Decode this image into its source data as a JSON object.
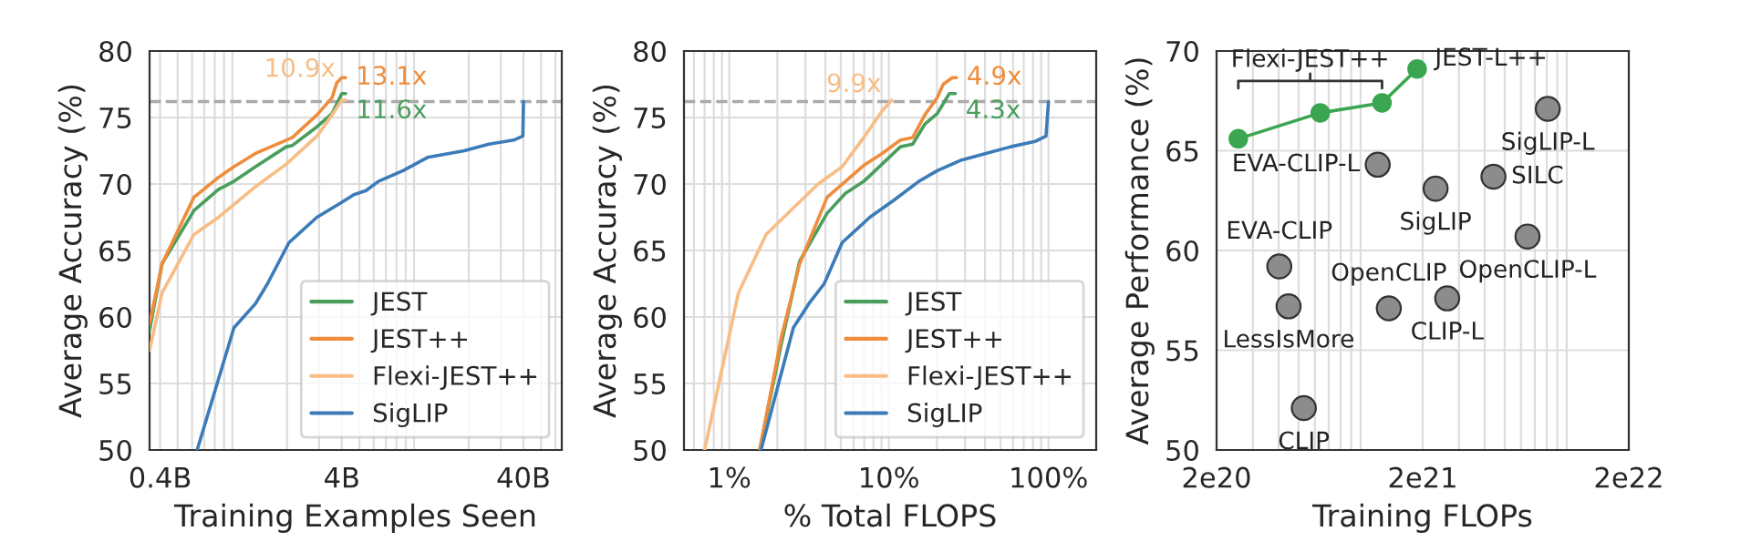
{
  "chart_data": [
    {
      "type": "line",
      "xlabel": "Training Examples Seen",
      "ylabel": "Average Accuracy (%)",
      "log": "x",
      "grid": true,
      "legend": "bottom right",
      "xlim": [
        0.35,
        65
      ],
      "ylim": [
        50,
        80
      ],
      "xticks": [
        {
          "value": 0.4,
          "label": "0.4B"
        },
        {
          "value": 0.5,
          "label": null
        },
        {
          "value": 0.6,
          "label": null
        },
        {
          "value": 0.7,
          "label": null
        },
        {
          "value": 0.8,
          "label": null
        },
        {
          "value": 0.9,
          "label": null
        },
        {
          "value": 1,
          "label": null
        },
        {
          "value": 2,
          "label": null
        },
        {
          "value": 3,
          "label": null
        },
        {
          "value": 4,
          "label": "4B"
        },
        {
          "value": 5,
          "label": null
        },
        {
          "value": 6,
          "label": null
        },
        {
          "value": 7,
          "label": null
        },
        {
          "value": 8,
          "label": null
        },
        {
          "value": 9,
          "label": null
        },
        {
          "value": 10,
          "label": null
        },
        {
          "value": 20,
          "label": null
        },
        {
          "value": 30,
          "label": null
        },
        {
          "value": 40,
          "label": "40B"
        },
        {
          "value": 50,
          "label": null
        },
        {
          "value": 60,
          "label": null
        }
      ],
      "yticks": [
        50,
        55,
        60,
        65,
        70,
        75,
        80
      ],
      "ref_lines": [
        {
          "axis": "y",
          "value": 76.2,
          "color": "#aaaaaa",
          "line_style": "dashed"
        }
      ],
      "annotations": [
        {
          "text": "13.1x",
          "x": 4.2,
          "y": 78
        },
        {
          "text": "11.6x",
          "x": 4.2,
          "y": 76.8
        },
        {
          "text": "10.9x",
          "x": 4.2,
          "y": 76.3
        }
      ],
      "series": [
        {
          "name": "JEST",
          "color": "#4a9e5c",
          "x": [
            0.35,
            0.41,
            0.614,
            0.839,
            1.02,
            1.34,
            1.98,
            2.14,
            2.92,
            3.54,
            4.0,
            4.2
          ],
          "values": [
            59,
            64,
            68,
            69.6,
            70.2,
            71.3,
            72.8,
            72.9,
            74.3,
            75.3,
            76.8,
            76.8
          ]
        },
        {
          "name": "JEST++",
          "color": "#ef8d3c",
          "x": [
            0.35,
            0.41,
            0.614,
            0.839,
            1.02,
            1.34,
            1.98,
            2.14,
            2.92,
            3.54,
            3.75,
            4.0,
            4.2
          ],
          "values": [
            59.5,
            64,
            69,
            70.5,
            71.3,
            72.3,
            73.3,
            73.5,
            75.2,
            76.5,
            77.6,
            78,
            78
          ]
        },
        {
          "name": "Flexi-JEST++",
          "color": "#f7bd85",
          "x": [
            0.35,
            0.41,
            0.614,
            0.839,
            1.34,
            1.98,
            2.92,
            3.54,
            4.0,
            4.2
          ],
          "values": [
            57.5,
            61.8,
            66.2,
            67.5,
            69.8,
            71.5,
            73.6,
            75.2,
            76.3,
            76.3
          ]
        },
        {
          "name": "SigLIP",
          "color": "#3b7bb8",
          "x": [
            0.64,
            1.02,
            1.34,
            1.56,
            2.05,
            2.92,
            3.97,
            4.66,
            5.44,
            6.36,
            8.69,
            11.86,
            18.9,
            25.8,
            35.3,
            39.7,
            40
          ],
          "values": [
            50,
            59.2,
            61,
            62.5,
            65.6,
            67.5,
            68.6,
            69.2,
            69.5,
            70.2,
            71,
            72,
            72.5,
            73,
            73.3,
            73.6,
            76.2
          ]
        }
      ]
    },
    {
      "type": "line",
      "xlabel": "% Total FLOPS",
      "ylabel": "Average Accuracy (%)",
      "log": "x",
      "grid": true,
      "legend": "bottom right",
      "xlim": [
        0.52,
        199
      ],
      "ylim": [
        50,
        80
      ],
      "xticks": [
        {
          "value": 0.6,
          "label": null
        },
        {
          "value": 0.7,
          "label": null
        },
        {
          "value": 0.8,
          "label": null
        },
        {
          "value": 0.9,
          "label": null
        },
        {
          "value": 1,
          "label": "1%"
        },
        {
          "value": 2,
          "label": null
        },
        {
          "value": 3,
          "label": null
        },
        {
          "value": 4,
          "label": null
        },
        {
          "value": 5,
          "label": null
        },
        {
          "value": 6,
          "label": null
        },
        {
          "value": 7,
          "label": null
        },
        {
          "value": 8,
          "label": null
        },
        {
          "value": 9,
          "label": null
        },
        {
          "value": 10,
          "label": "10%"
        },
        {
          "value": 20,
          "label": null
        },
        {
          "value": 30,
          "label": null
        },
        {
          "value": 40,
          "label": null
        },
        {
          "value": 50,
          "label": null
        },
        {
          "value": 60,
          "label": null
        },
        {
          "value": 70,
          "label": null
        },
        {
          "value": 80,
          "label": null
        },
        {
          "value": 90,
          "label": null
        },
        {
          "value": 100,
          "label": "100%"
        }
      ],
      "yticks": [
        50,
        55,
        60,
        65,
        70,
        75,
        80
      ],
      "ref_lines": [
        {
          "axis": "y",
          "value": 76.2,
          "color": "#aaaaaa",
          "line_style": "dashed"
        }
      ],
      "annotations": [
        {
          "text": "4.9x",
          "x": 26.5,
          "y": 78
        },
        {
          "text": "4.3x",
          "x": 26.1,
          "y": 76.8
        },
        {
          "text": "9.9x",
          "x": 10.4,
          "y": 76.3
        }
      ],
      "series": [
        {
          "name": "JEST",
          "color": "#4a9e5c",
          "x": [
            1.55,
            2.12,
            2.76,
            4.1,
            5.34,
            6.96,
            9.07,
            11.8,
            14.1,
            16.8,
            20.1,
            23.9,
            26.1
          ],
          "values": [
            50,
            58,
            64.2,
            67.8,
            69.3,
            70.2,
            71.5,
            72.8,
            73,
            74.5,
            75.3,
            76.8,
            76.8
          ]
        },
        {
          "name": "JEST++",
          "color": "#ef8d3c",
          "x": [
            1.55,
            2.12,
            2.76,
            4.1,
            5.34,
            6.96,
            9.07,
            11.8,
            14.1,
            16.8,
            20.1,
            21.9,
            25,
            26.5
          ],
          "values": [
            50,
            58.5,
            64,
            69,
            70.2,
            71.4,
            72.3,
            73.3,
            73.5,
            75.2,
            76.5,
            77.5,
            78,
            78
          ]
        },
        {
          "name": "Flexi-JEST++",
          "color": "#f7bd85",
          "x": [
            0.7,
            1.14,
            1.7,
            2.42,
            3.6,
            5.1,
            6.96,
            9.07,
            10.4
          ],
          "values": [
            50,
            61.8,
            66.2,
            68,
            70,
            71.3,
            73.5,
            75.5,
            76.3
          ]
        },
        {
          "name": "SigLIP",
          "color": "#3b7bb8",
          "x": [
            1.58,
            2.52,
            3.15,
            3.93,
            5.1,
            7.6,
            10.8,
            15.4,
            20.1,
            28.5,
            40.5,
            57.9,
            82.4,
            96.5,
            100
          ],
          "values": [
            50,
            59.2,
            61,
            62.5,
            65.6,
            67.5,
            68.8,
            70.2,
            71,
            71.8,
            72.3,
            72.8,
            73.2,
            73.6,
            76.2
          ]
        }
      ]
    },
    {
      "type": "scatter",
      "xlabel": "Training FLOPs",
      "ylabel": "Average Performance (%)",
      "log": "x",
      "grid": true,
      "xlim": [
        2e+20,
        2e+22
      ],
      "ylim": [
        50,
        70
      ],
      "xticks": [
        {
          "value": 2e+20,
          "label": "2e20"
        },
        {
          "value": 3e+20,
          "label": null
        },
        {
          "value": 4e+20,
          "label": null
        },
        {
          "value": 5e+20,
          "label": null
        },
        {
          "value": 6e+20,
          "label": null
        },
        {
          "value": 7e+20,
          "label": null
        },
        {
          "value": 8e+20,
          "label": null
        },
        {
          "value": 9e+20,
          "label": null
        },
        {
          "value": 1e+21,
          "label": null
        },
        {
          "value": 2e+21,
          "label": "2e21"
        },
        {
          "value": 3e+21,
          "label": null
        },
        {
          "value": 4e+21,
          "label": null
        },
        {
          "value": 5e+21,
          "label": null
        },
        {
          "value": 6e+21,
          "label": null
        },
        {
          "value": 7e+21,
          "label": null
        },
        {
          "value": 8e+21,
          "label": null
        },
        {
          "value": 9e+21,
          "label": null
        },
        {
          "value": 1e+22,
          "label": null
        },
        {
          "value": 2e+22,
          "label": "2e22"
        }
      ],
      "yticks": [
        50,
        55,
        60,
        65,
        70
      ],
      "annotations": [
        "Flexi-JEST++",
        {
          "text": "JEST-L++",
          "x": 1.88e+21,
          "y": 69.1
        },
        {
          "text": "SigLIP-L",
          "x": 8.09e+21,
          "y": 67.1
        },
        {
          "text": "EVA-CLIP-L",
          "x": 1.21e+21,
          "y": 64.3
        },
        {
          "text": "SigLIP",
          "x": 2.31e+21,
          "y": 63.1
        },
        {
          "text": "SILC",
          "x": 4.41e+21,
          "y": 63.7
        },
        {
          "text": "OpenCLIP-L",
          "x": 6.45e+21,
          "y": 60.7
        },
        {
          "text": "EVA-CLIP",
          "x": 4.03e+20,
          "y": 59.2
        },
        {
          "text": "LessIsMore",
          "x": 4.47e+20,
          "y": 57.2
        },
        {
          "text": "OpenCLIP",
          "x": 1.37e+21,
          "y": 57.1
        },
        {
          "text": "CLIP-L",
          "x": 2.63e+21,
          "y": 57.6
        },
        {
          "text": "CLIP",
          "x": 5.3e+20,
          "y": 52.1
        }
      ],
      "series": [
        {
          "type": "line",
          "marker": "circle",
          "color": "#3aa64f",
          "x": [
            2.55e+20,
            6.37e+20,
            1.27e+21,
            1.88e+21
          ],
          "values": [
            65.6,
            66.9,
            67.4,
            69.1
          ]
        },
        {
          "type": "scatter",
          "marker": "circle",
          "color": "#8c8c8c",
          "x": [
            8.09e+21,
            1.21e+21,
            2.31e+21,
            4.41e+21,
            6.45e+21,
            4.03e+20,
            4.47e+20,
            1.37e+21,
            2.63e+21,
            5.3e+20
          ],
          "values": [
            67.1,
            64.3,
            63.1,
            63.7,
            60.7,
            59.2,
            57.2,
            57.1,
            57.6,
            52.1
          ]
        }
      ]
    }
  ]
}
